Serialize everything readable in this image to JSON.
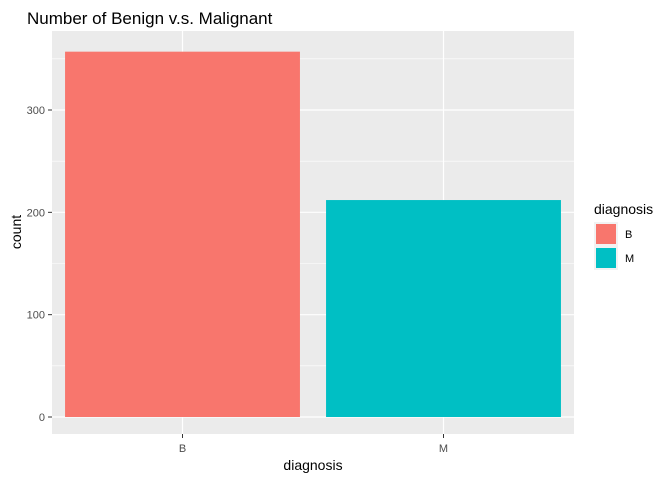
{
  "chart_data": {
    "type": "bar",
    "title": "Number of Benign v.s. Malignant",
    "xlabel": "diagnosis",
    "ylabel": "count",
    "categories": [
      "B",
      "M"
    ],
    "values": [
      357,
      212
    ],
    "colors": [
      "#F8766D",
      "#00BFC4"
    ],
    "ylim": [
      0,
      375
    ],
    "yticks": [
      0,
      100,
      200,
      300
    ],
    "grid": true,
    "panel_background": "#EBEBEB",
    "grid_color": "#FFFFFF",
    "legend": {
      "title": "diagnosis",
      "placement": "right",
      "entries": [
        "B",
        "M"
      ]
    }
  }
}
